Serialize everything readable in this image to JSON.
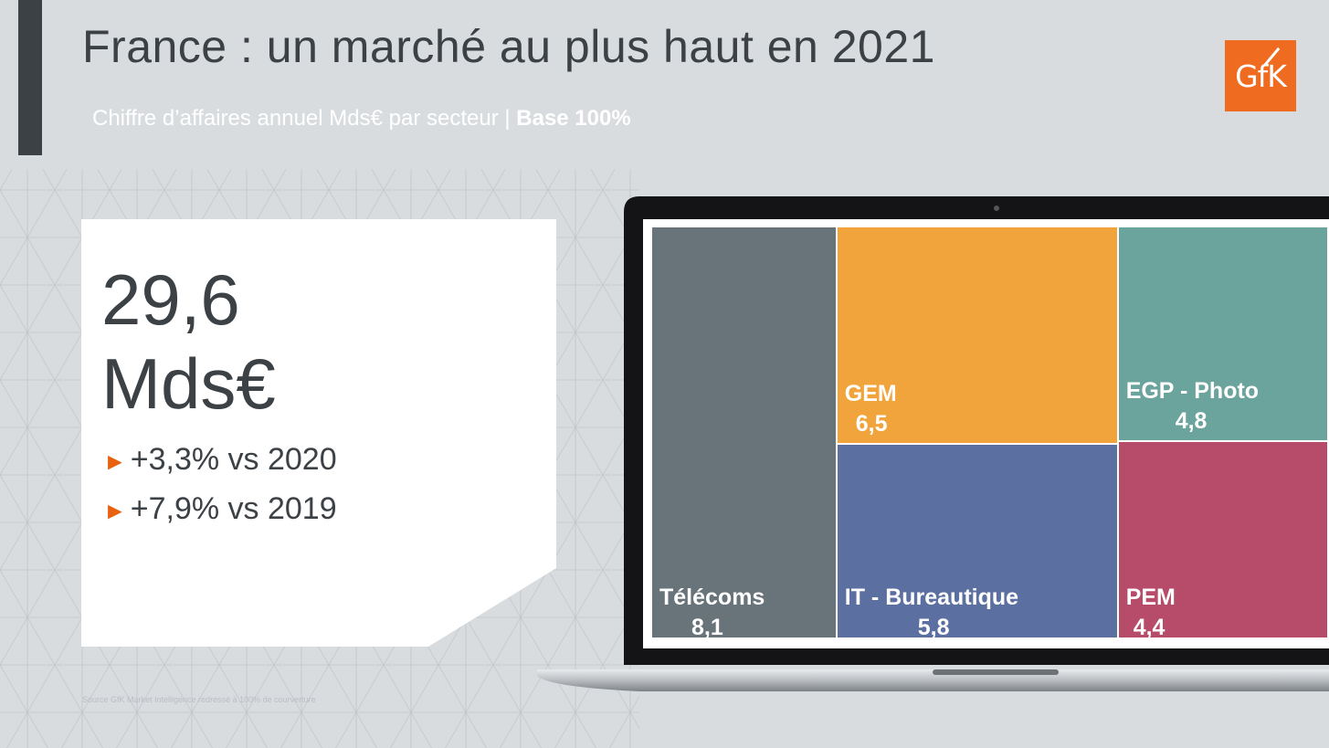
{
  "page": {
    "title": "France : un marché au plus haut en 2021",
    "subtitle_prefix": "Chiffre d’affaires annuel Mds€ par secteur | ",
    "subtitle_bold": "Base 100%",
    "logo_text": "GfK",
    "source_note": "Source GfK Market Intelligence redressé à 100% de courverture"
  },
  "kpi": {
    "value_line1": "29,6",
    "value_line2": "Mds€",
    "growth": [
      {
        "marker": "►",
        "text": "+3,3% vs 2020"
      },
      {
        "marker": "►",
        "text": "+7,9% vs 2019"
      }
    ]
  },
  "colors": {
    "background": "#d9dcdf",
    "dark": "#3c4146",
    "accent_orange": "#ee6b1f",
    "Télécoms": "#69747a",
    "GEM": "#f1a43b",
    "IT - Bureautique": "#5b70a1",
    "EGP - Photo": "#6ba39d",
    "PEM": "#b64b6a"
  },
  "chart_data": {
    "type": "treemap",
    "total": 29.6,
    "unit": "Mds€",
    "items": [
      {
        "name": "Télécoms",
        "value": 8.1,
        "label": "8,1"
      },
      {
        "name": "GEM",
        "value": 6.5,
        "label": "6,5"
      },
      {
        "name": "IT - Bureautique",
        "value": 5.8,
        "label": "5,8"
      },
      {
        "name": "EGP - Photo",
        "value": 4.8,
        "label": "4,8"
      },
      {
        "name": "PEM",
        "value": 4.4,
        "label": "4,4"
      }
    ]
  }
}
